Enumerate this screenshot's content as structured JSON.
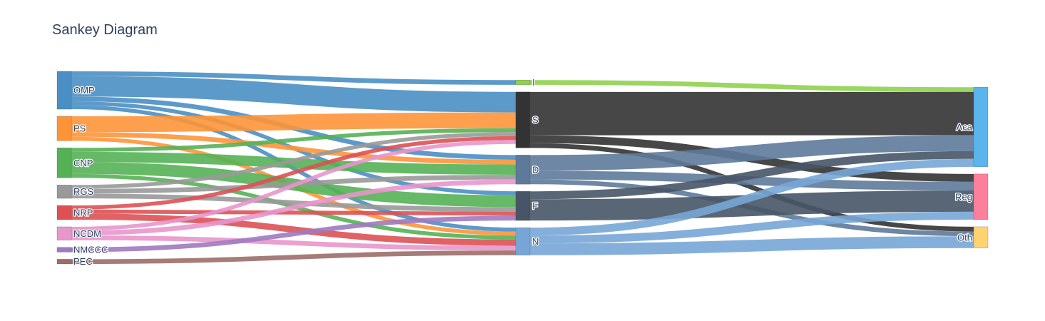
{
  "title": "Sankey Diagram",
  "chart_data": {
    "type": "sankey",
    "title": "Sankey Diagram",
    "nodes": [
      {
        "id": "OMP",
        "label": "OMP",
        "column": 0,
        "color": "#4a8fc4"
      },
      {
        "id": "PS",
        "label": "PS",
        "column": 0,
        "color": "#fd9538"
      },
      {
        "id": "CNP",
        "label": "CNP",
        "column": 0,
        "color": "#55b155"
      },
      {
        "id": "RGS",
        "label": "RGS",
        "column": 0,
        "color": "#999999"
      },
      {
        "id": "NRP",
        "label": "NRP",
        "column": 0,
        "color": "#dd5154"
      },
      {
        "id": "NCDM",
        "label": "NCDM",
        "column": 0,
        "color": "#e896cc"
      },
      {
        "id": "NMCCC",
        "label": "NMCCC",
        "column": 0,
        "color": "#a07ac0"
      },
      {
        "id": "PEC",
        "label": "PEC",
        "column": 0,
        "color": "#9c6e69"
      },
      {
        "id": "I",
        "label": "I",
        "column": 1,
        "color": "#8fd14f"
      },
      {
        "id": "S",
        "label": "S",
        "column": 1,
        "color": "#333333"
      },
      {
        "id": "D",
        "label": "D",
        "column": 1,
        "color": "#5d7a9a"
      },
      {
        "id": "F",
        "label": "F",
        "column": 1,
        "color": "#475567"
      },
      {
        "id": "N",
        "label": "N",
        "column": 1,
        "color": "#77a6d6"
      },
      {
        "id": "Aca",
        "label": "Aca",
        "column": 2,
        "color": "#5ab4ee"
      },
      {
        "id": "Reg",
        "label": "Reg",
        "column": 2,
        "color": "#fe7f9c"
      },
      {
        "id": "Oth",
        "label": "Oth",
        "column": 2,
        "color": "#ffd470"
      }
    ],
    "links": [
      {
        "source": "OMP",
        "target": "I",
        "value": 6
      },
      {
        "source": "OMP",
        "target": "S",
        "value": 26
      },
      {
        "source": "OMP",
        "target": "D",
        "value": 6
      },
      {
        "source": "OMP",
        "target": "F",
        "value": 5
      },
      {
        "source": "OMP",
        "target": "N",
        "value": 5
      },
      {
        "source": "PS",
        "target": "S",
        "value": 20
      },
      {
        "source": "PS",
        "target": "D",
        "value": 6
      },
      {
        "source": "PS",
        "target": "N",
        "value": 5
      },
      {
        "source": "CNP",
        "target": "S",
        "value": 5
      },
      {
        "source": "CNP",
        "target": "D",
        "value": 13
      },
      {
        "source": "CNP",
        "target": "F",
        "value": 15
      },
      {
        "source": "CNP",
        "target": "N",
        "value": 5
      },
      {
        "source": "RGS",
        "target": "S",
        "value": 5
      },
      {
        "source": "RGS",
        "target": "D",
        "value": 6
      },
      {
        "source": "RGS",
        "target": "F",
        "value": 6
      },
      {
        "source": "NRP",
        "target": "S",
        "value": 5
      },
      {
        "source": "NRP",
        "target": "F",
        "value": 5
      },
      {
        "source": "NRP",
        "target": "N",
        "value": 8
      },
      {
        "source": "NCDM",
        "target": "S",
        "value": 5
      },
      {
        "source": "NCDM",
        "target": "D",
        "value": 6
      },
      {
        "source": "NCDM",
        "target": "N",
        "value": 6
      },
      {
        "source": "NMCCC",
        "target": "F",
        "value": 6
      },
      {
        "source": "PEC",
        "target": "N",
        "value": 6
      },
      {
        "source": "I",
        "target": "Aca",
        "value": 6
      },
      {
        "source": "S",
        "target": "Aca",
        "value": 55
      },
      {
        "source": "S",
        "target": "Reg",
        "value": 10
      },
      {
        "source": "S",
        "target": "Oth",
        "value": 6
      },
      {
        "source": "D",
        "target": "Aca",
        "value": 20
      },
      {
        "source": "D",
        "target": "Reg",
        "value": 11
      },
      {
        "source": "D",
        "target": "Oth",
        "value": 6
      },
      {
        "source": "F",
        "target": "Aca",
        "value": 10
      },
      {
        "source": "F",
        "target": "Reg",
        "value": 27
      },
      {
        "source": "N",
        "target": "Aca",
        "value": 10
      },
      {
        "source": "N",
        "target": "Reg",
        "value": 10
      },
      {
        "source": "N",
        "target": "Oth",
        "value": 15
      }
    ]
  }
}
